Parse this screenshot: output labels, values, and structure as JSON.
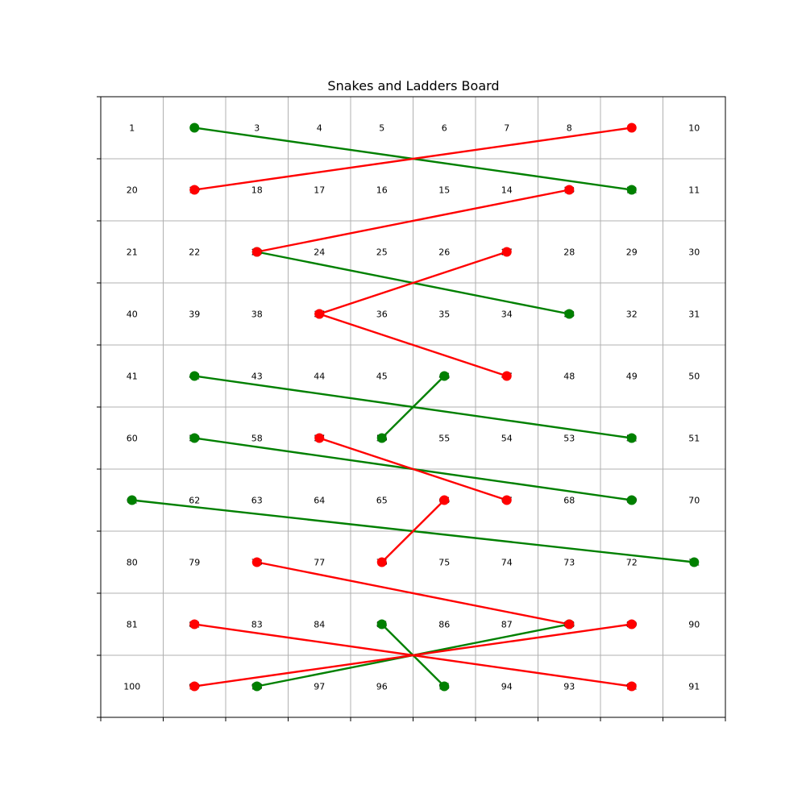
{
  "chart_data": {
    "type": "scatter",
    "title": "Snakes and Ladders Board",
    "xlabel": "",
    "ylabel": "",
    "grid": true,
    "board": {
      "columns": 10,
      "rows": 10,
      "cells": [
        [
          1,
          2,
          3,
          4,
          5,
          6,
          7,
          8,
          9,
          10
        ],
        [
          20,
          19,
          18,
          17,
          16,
          15,
          14,
          13,
          12,
          11
        ],
        [
          21,
          22,
          23,
          24,
          25,
          26,
          27,
          28,
          29,
          30
        ],
        [
          40,
          39,
          38,
          37,
          36,
          35,
          34,
          33,
          32,
          31
        ],
        [
          41,
          42,
          43,
          44,
          45,
          46,
          47,
          48,
          49,
          50
        ],
        [
          60,
          59,
          58,
          57,
          56,
          55,
          54,
          53,
          52,
          51
        ],
        [
          61,
          62,
          63,
          64,
          65,
          66,
          67,
          68,
          69,
          70
        ],
        [
          80,
          79,
          78,
          77,
          76,
          75,
          74,
          73,
          72,
          71
        ],
        [
          81,
          82,
          83,
          84,
          85,
          86,
          87,
          88,
          89,
          90
        ],
        [
          100,
          99,
          98,
          97,
          96,
          95,
          94,
          93,
          92,
          91
        ]
      ]
    },
    "series": [
      {
        "kind": "ladders",
        "color": "#008000",
        "pairs": [
          [
            2,
            12
          ],
          [
            23,
            33
          ],
          [
            42,
            52
          ],
          [
            46,
            56
          ],
          [
            59,
            69
          ],
          [
            61,
            71
          ],
          [
            85,
            95
          ],
          [
            88,
            98
          ]
        ]
      },
      {
        "kind": "snakes",
        "color": "#ff0000",
        "pairs": [
          [
            9,
            19
          ],
          [
            13,
            23
          ],
          [
            27,
            37
          ],
          [
            37,
            47
          ],
          [
            57,
            67
          ],
          [
            66,
            76
          ],
          [
            78,
            88
          ],
          [
            82,
            92
          ],
          [
            89,
            99
          ]
        ]
      }
    ]
  }
}
